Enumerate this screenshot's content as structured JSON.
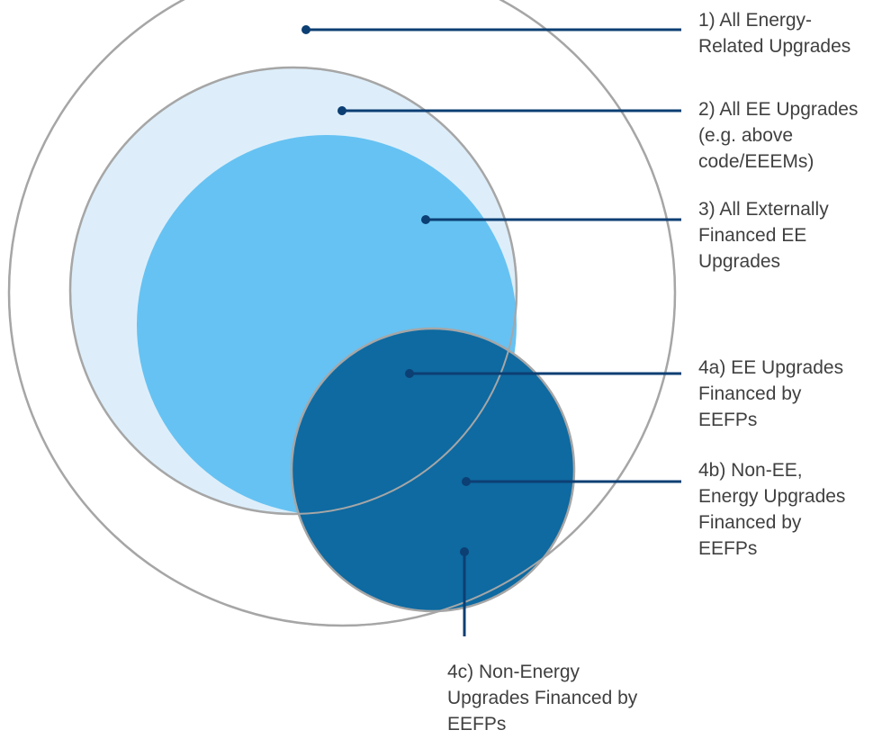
{
  "colors": {
    "outer_ring": "#a6a6a6",
    "ee_fill": "#ddeefa",
    "external_fill": "#66c2f2",
    "eefp_fill": "#0e6aa1",
    "leader": "#0c3f73",
    "text": "#404040"
  },
  "labels": {
    "all_energy": "1) All Energy-\nRelated Upgrades",
    "all_ee": "2) All EE Upgrades\n(e.g. above\ncode/EEEMs)",
    "external_ee": "3) All Externally\nFinanced EE\nUpgrades",
    "ee_eefp": "4a) EE Upgrades\nFinanced by\nEEFPs",
    "non_ee_energy": "4b) Non-EE,\nEnergy Upgrades\nFinanced by\nEEFPs",
    "non_energy": "4c) Non-Energy\nUpgrades Financed by\nEEFPs"
  }
}
